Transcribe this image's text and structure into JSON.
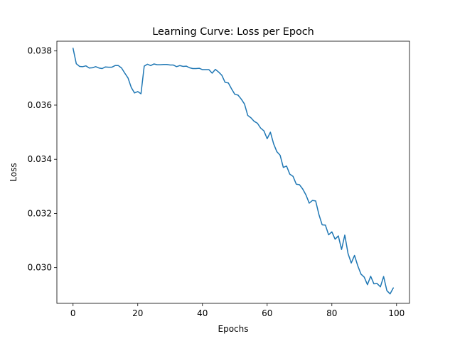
{
  "chart_data": {
    "type": "line",
    "title": "Learning Curve: Loss per Epoch",
    "xlabel": "Epochs",
    "ylabel": "Loss",
    "xlim": [
      -5,
      104
    ],
    "ylim": [
      0.02868,
      0.03836
    ],
    "xticks": [
      0,
      20,
      40,
      60,
      80,
      100
    ],
    "yticks": [
      0.03,
      0.032,
      0.034,
      0.036,
      0.038
    ],
    "grid": false,
    "line_color": "#1f77b4",
    "series": [
      {
        "x": [
          0,
          1,
          2,
          3,
          4,
          5,
          6,
          7,
          8,
          9,
          10,
          11,
          12,
          13,
          14,
          15,
          16,
          17,
          18,
          19,
          20,
          21,
          22,
          23,
          24,
          25,
          26,
          27,
          28,
          29,
          30,
          31,
          32,
          33,
          34,
          35,
          36,
          37,
          38,
          39,
          40,
          41,
          42,
          43,
          44,
          45,
          46,
          47,
          48,
          49,
          50,
          51,
          52,
          53,
          54,
          55,
          56,
          57,
          58,
          59,
          60,
          61,
          62,
          63,
          64,
          65,
          66,
          67,
          68,
          69,
          70,
          71,
          72,
          73,
          74,
          75,
          76,
          77,
          78,
          79,
          80,
          81,
          82,
          83,
          84,
          85,
          86,
          87,
          88,
          89,
          90,
          91,
          92,
          93,
          94,
          95,
          96,
          97,
          98,
          99
        ],
        "values": [
          0.0381,
          0.03753,
          0.03743,
          0.03742,
          0.03745,
          0.03737,
          0.03738,
          0.03742,
          0.03737,
          0.03735,
          0.03741,
          0.0374,
          0.0374,
          0.03746,
          0.03746,
          0.03737,
          0.03718,
          0.037,
          0.03665,
          0.03645,
          0.0365,
          0.03642,
          0.03744,
          0.03751,
          0.03746,
          0.03752,
          0.03749,
          0.03749,
          0.0375,
          0.0375,
          0.03748,
          0.03748,
          0.03742,
          0.03746,
          0.03743,
          0.03744,
          0.03738,
          0.03735,
          0.03735,
          0.03736,
          0.03731,
          0.03731,
          0.03731,
          0.03718,
          0.03732,
          0.03722,
          0.0371,
          0.03684,
          0.03682,
          0.0366,
          0.0364,
          0.03637,
          0.03622,
          0.03604,
          0.03562,
          0.03553,
          0.0354,
          0.03533,
          0.03515,
          0.03505,
          0.03476,
          0.035,
          0.03457,
          0.03428,
          0.03415,
          0.0337,
          0.03375,
          0.03345,
          0.03337,
          0.03308,
          0.03306,
          0.0329,
          0.03268,
          0.03238,
          0.03248,
          0.03246,
          0.03196,
          0.03158,
          0.03157,
          0.03121,
          0.03132,
          0.03105,
          0.03117,
          0.03067,
          0.0312,
          0.03052,
          0.03017,
          0.03045,
          0.03007,
          0.02976,
          0.02965,
          0.02937,
          0.02968,
          0.0294,
          0.02941,
          0.02929,
          0.02967,
          0.02915,
          0.02903,
          0.02925
        ]
      }
    ]
  }
}
